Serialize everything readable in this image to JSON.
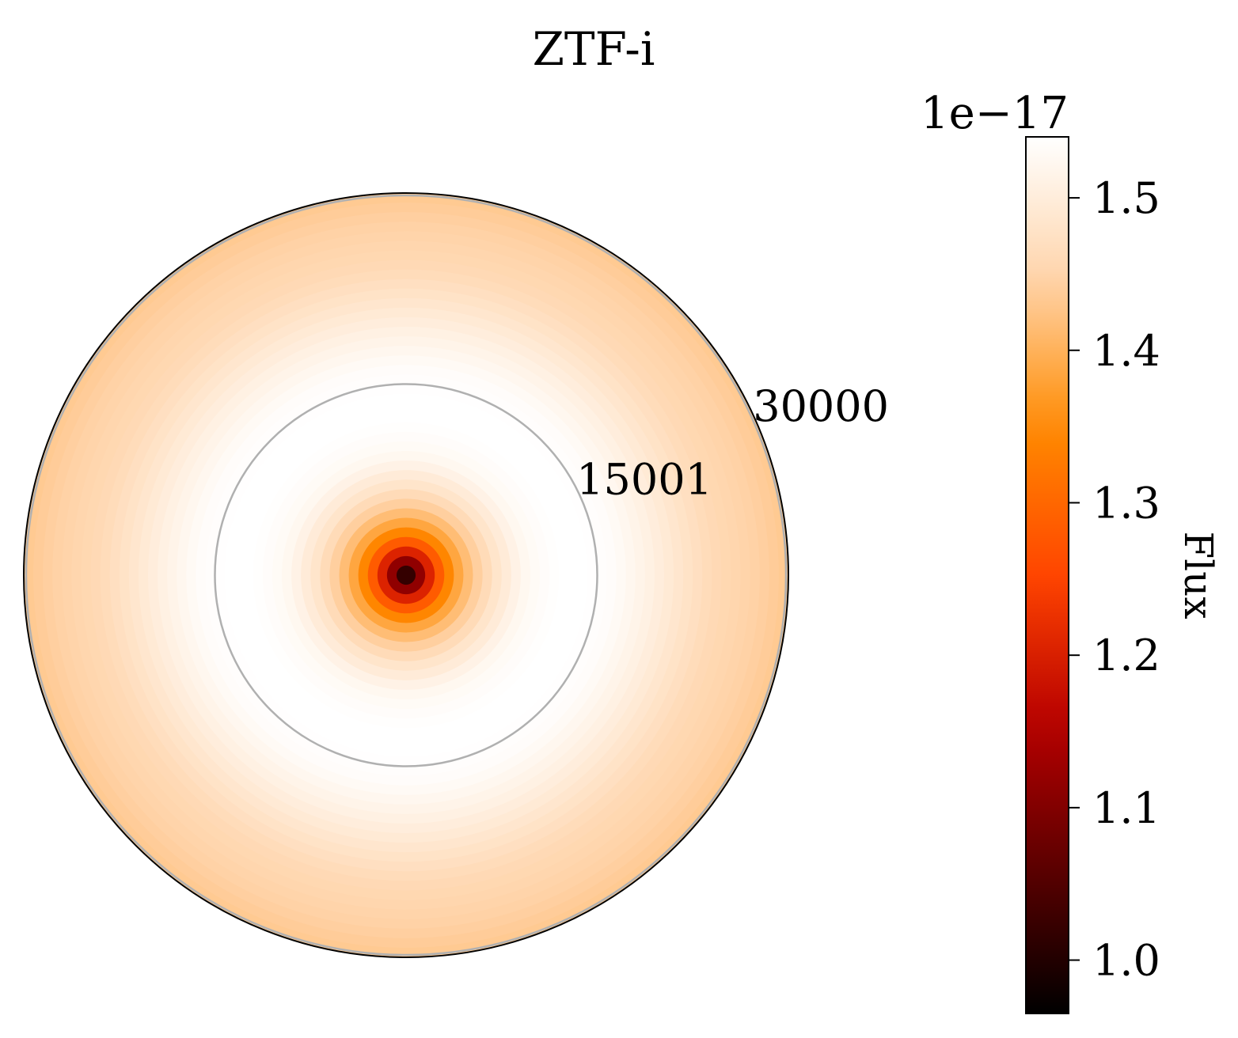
{
  "chart_data": {
    "type": "heatmap",
    "subtype": "polar-radial",
    "title": "ZTF-i",
    "radial_axis": {
      "range": [
        0,
        30000
      ],
      "tick_values": [
        15001,
        30000
      ],
      "tick_labels": [
        "15001",
        "30000"
      ],
      "grid": true
    },
    "radial_profile": {
      "r": [
        0,
        1000,
        2000,
        3000,
        4000,
        5000,
        6000,
        7000,
        8000,
        9000,
        10000,
        11000,
        12000,
        14000,
        16000,
        18000,
        20000,
        22000,
        24000,
        26000,
        28000,
        30000
      ],
      "flux_e17": [
        0.97,
        1.1,
        1.22,
        1.32,
        1.38,
        1.42,
        1.45,
        1.48,
        1.5,
        1.52,
        1.53,
        1.535,
        1.54,
        1.54,
        1.535,
        1.52,
        1.5,
        1.48,
        1.46,
        1.45,
        1.44,
        1.43
      ]
    },
    "colorbar": {
      "label": "Flux",
      "offset_text": "1e−17",
      "range": [
        0.965,
        1.54
      ],
      "tick_values": [
        1.0,
        1.1,
        1.2,
        1.3,
        1.4,
        1.5
      ],
      "tick_labels": [
        "1.0",
        "1.1",
        "1.2",
        "1.3",
        "1.4",
        "1.5"
      ],
      "colormap": "gist_heat",
      "colormap_stops": [
        "#000000",
        "#5c0000",
        "#b80000",
        "#ff4500",
        "#ff8a00",
        "#ffd3a8",
        "#ffffff"
      ]
    }
  }
}
